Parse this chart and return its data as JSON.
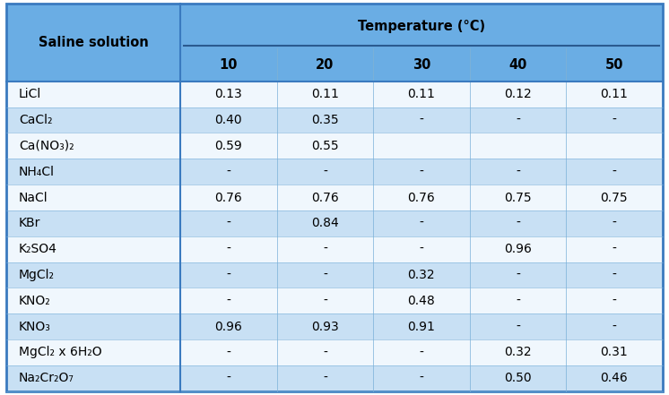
{
  "header_main": "Temperature (°C)",
  "header_col0": "Saline solution",
  "header_temps": [
    "10",
    "20",
    "30",
    "40",
    "50"
  ],
  "rows": [
    [
      "LiCl",
      "0.13",
      "0.11",
      "0.11",
      "0.12",
      "0.11"
    ],
    [
      "CaCl₂",
      "0.40",
      "0.35",
      "-",
      "-",
      "-"
    ],
    [
      "Ca(NO₃)₂",
      "0.59",
      "0.55",
      "",
      "",
      ""
    ],
    [
      "NH₄Cl",
      "-",
      "-",
      "-",
      "-",
      "-"
    ],
    [
      "NaCl",
      "0.76",
      "0.76",
      "0.76",
      "0.75",
      "0.75"
    ],
    [
      "KBr",
      "-",
      "0.84",
      "-",
      "-",
      "-"
    ],
    [
      "K₂SO4",
      "-",
      "-",
      "-",
      "0.96",
      "-"
    ],
    [
      "MgCl₂",
      "-",
      "-",
      "0.32",
      "-",
      "-"
    ],
    [
      "KNO₂",
      "-",
      "-",
      "0.48",
      "-",
      "-"
    ],
    [
      "KNO₃",
      "0.96",
      "0.93",
      "0.91",
      "-",
      "-"
    ],
    [
      "MgCl₂ x 6H₂O",
      "-",
      "-",
      "-",
      "0.32",
      "0.31"
    ],
    [
      "Na₂Cr₂O₇",
      "-",
      "-",
      "-",
      "0.50",
      "0.46"
    ]
  ],
  "color_header_bg": "#6aade4",
  "color_row_light": "#c8e0f4",
  "color_row_white": "#f0f7fd",
  "color_border_outer": "#3a7abf",
  "color_border_inner": "#7ab0d8",
  "color_header_line": "#2a5a8f",
  "font_size_header": 10.5,
  "font_size_data": 10,
  "font_size_col0": 10
}
